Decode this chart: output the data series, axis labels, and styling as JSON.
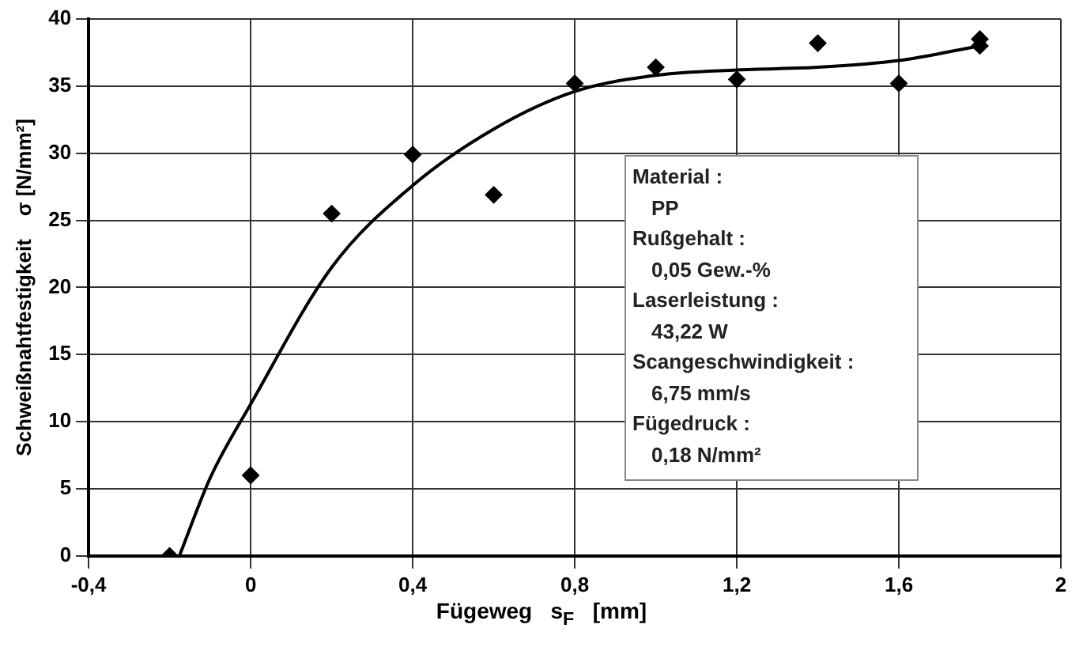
{
  "chart_data": {
    "type": "scatter",
    "xlabel": "Fügeweg   s$_{F}$   [mm]",
    "ylabel": "Schweißnahtfestigkeit    σ [N/mm²]",
    "x": [
      -0.2,
      0,
      0.2,
      0.4,
      0.6,
      0.8,
      1.0,
      1.2,
      1.4,
      1.6,
      1.8,
      1.8
    ],
    "series": [
      {
        "color": "#000000",
        "marker": "diamond",
        "values": [
          0,
          6,
          25.5,
          29.9,
          26.9,
          35.2,
          36.4,
          35.5,
          38.2,
          35.2,
          38.5,
          38.0
        ]
      },
      {
        "type": "line",
        "color": "#000000",
        "marker": "none",
        "x": [
          -0.176,
          -0.1,
          0,
          0.2,
          0.4,
          0.6,
          0.8,
          1.0,
          1.2,
          1.4,
          1.6,
          1.8
        ],
        "values": [
          0,
          5.8,
          11.3,
          21.5,
          27.6,
          31.8,
          34.6,
          35.8,
          36.2,
          36.4,
          36.9,
          38.0
        ]
      }
    ],
    "xlim": [
      -0.4,
      2
    ],
    "xticks": [
      {
        "value": -0.4,
        "label": "-0,4"
      },
      0,
      {
        "value": 0.4,
        "label": "0,4"
      },
      {
        "value": 0.8,
        "label": "0,8"
      },
      {
        "value": 1.2,
        "label": "1,2"
      },
      {
        "value": 1.6,
        "label": "1,6"
      },
      2
    ],
    "ylim": [
      0,
      40
    ],
    "yticks": [
      0,
      5,
      10,
      15,
      20,
      25,
      30,
      35,
      40
    ],
    "grid": true,
    "legend": false,
    "annotations": [
      "Material :",
      "PP",
      "Rußgehalt :",
      "0,05 Gew.-%",
      "Laserleistung :",
      "43,22 W",
      "Scangeschwindigkeit :",
      "6,75 mm/s",
      "Fügedruck :",
      "0,18 N/mm²"
    ]
  }
}
